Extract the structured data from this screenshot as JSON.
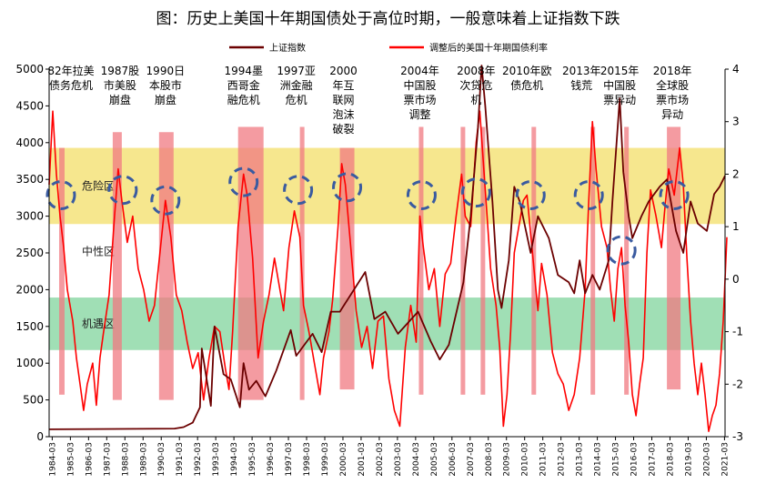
{
  "chart_data": {
    "type": "line",
    "title": "图：历史上美国十年期国债处于高位时期，一般意味着上证指数下跌",
    "legend_position": "top",
    "series": [
      {
        "name": "上证指数",
        "color": "#6b0000",
        "axis": "left"
      },
      {
        "name": "调整后的美国十年期国债利率",
        "color": "#ff0000",
        "axis": "right"
      }
    ],
    "left_axis": {
      "ylim": [
        0,
        5000
      ],
      "ticks": [
        "0",
        "500",
        "1000",
        "1500",
        "2000",
        "2500",
        "3000",
        "3500",
        "4000",
        "4500",
        "5000"
      ]
    },
    "right_axis": {
      "ylim": [
        -3,
        4
      ],
      "ticks": [
        "-3",
        "-2",
        "-1",
        "0",
        "1",
        "2",
        "3",
        "4"
      ]
    },
    "x_ticks": [
      "1984-03",
      "1985-03",
      "1986-03",
      "1987-03",
      "1988-03",
      "1989-03",
      "1990-03",
      "1991-03",
      "1992-03",
      "1993-03",
      "1994-03",
      "1995-03",
      "1996-03",
      "1997-03",
      "1998-03",
      "1999-03",
      "2000-03",
      "2001-03",
      "2002-03",
      "2003-03",
      "2004-03",
      "2005-03",
      "2006-03",
      "2007-03",
      "2008-03",
      "2009-03",
      "2010-03",
      "2011-03",
      "2012-03",
      "2013-03",
      "2014-03",
      "2015-03",
      "2016-03",
      "2017-03",
      "2018-03",
      "2019-03",
      "2020-03",
      "2021-03"
    ],
    "zones": [
      {
        "label": "危险区",
        "color": "#f5e37a",
        "y_range": [
          1.05,
          2.5
        ]
      },
      {
        "label": "中性区",
        "color": "#ffffff",
        "y_range": [
          -0.35,
          1.05
        ]
      },
      {
        "label": "机遇区",
        "color": "#8fd9a8",
        "y_range": [
          -1.35,
          -0.35
        ]
      }
    ],
    "annotations": [
      {
        "year": 1985.2,
        "lines": [
          "82年拉美",
          "债务危机"
        ]
      },
      {
        "year": 1987.9,
        "lines": [
          "1987股",
          "市美股",
          "崩盘"
        ]
      },
      {
        "year": 1990.4,
        "lines": [
          "1990日",
          "本股市",
          "崩盘"
        ]
      },
      {
        "year": 1994.7,
        "lines": [
          "1994墨",
          "西哥金",
          "融危机"
        ]
      },
      {
        "year": 1997.6,
        "lines": [
          "1997亚",
          "洲金融",
          "危机"
        ]
      },
      {
        "year": 2000.2,
        "lines": [
          "2000",
          "年互",
          "联网",
          "泡沫",
          "破裂"
        ]
      },
      {
        "year": 2004.4,
        "lines": [
          "2004年",
          "中国股",
          "票市场",
          "调整"
        ]
      },
      {
        "year": 2007.5,
        "lines": [
          "2008年",
          "次贷危",
          "机"
        ]
      },
      {
        "year": 2010.3,
        "lines": [
          "2010年欧",
          "债危机"
        ]
      },
      {
        "year": 2013.3,
        "lines": [
          "2013年",
          "钱荒"
        ]
      },
      {
        "year": 2015.4,
        "lines": [
          "2015年",
          "中国股",
          "票异动"
        ]
      },
      {
        "year": 2018.3,
        "lines": [
          "2018年",
          "全球股",
          "票市场",
          "异动"
        ]
      }
    ],
    "highlight_bars": [
      {
        "start": 1984.55,
        "end": 1984.85,
        "top": 2.5,
        "bottom": -2.2
      },
      {
        "start": 1987.5,
        "end": 1988.0,
        "top": 2.8,
        "bottom": -2.3
      },
      {
        "start": 1990.05,
        "end": 1990.85,
        "top": 2.8,
        "bottom": -2.3
      },
      {
        "start": 1994.4,
        "end": 1995.8,
        "top": 2.9,
        "bottom": -2.3
      },
      {
        "start": 1997.8,
        "end": 1998.05,
        "top": 2.9,
        "bottom": -2.3
      },
      {
        "start": 2000.0,
        "end": 2000.8,
        "top": 2.5,
        "bottom": -2.1
      },
      {
        "start": 2004.35,
        "end": 2004.6,
        "top": 2.9,
        "bottom": -2.2
      },
      {
        "start": 2006.65,
        "end": 2006.9,
        "top": 2.9,
        "bottom": -2.2
      },
      {
        "start": 2007.75,
        "end": 2008.0,
        "top": 2.9,
        "bottom": -2.2
      },
      {
        "start": 2010.55,
        "end": 2010.8,
        "top": 2.9,
        "bottom": -2.2
      },
      {
        "start": 2013.8,
        "end": 2014.05,
        "top": 2.9,
        "bottom": -2.2
      },
      {
        "start": 2015.65,
        "end": 2015.9,
        "top": 2.9,
        "bottom": -2.2
      },
      {
        "start": 2018.0,
        "end": 2018.75,
        "top": 2.9,
        "bottom": -2.1
      }
    ],
    "highlight_circles": [
      {
        "year": 1984.65,
        "value": 1.6
      },
      {
        "year": 1988.05,
        "value": 1.7
      },
      {
        "year": 1990.4,
        "value": 1.5
      },
      {
        "year": 1994.7,
        "value": 1.85
      },
      {
        "year": 1997.7,
        "value": 1.7
      },
      {
        "year": 2000.4,
        "value": 1.75
      },
      {
        "year": 2004.5,
        "value": 1.6
      },
      {
        "year": 2007.5,
        "value": 1.65
      },
      {
        "year": 2010.5,
        "value": 1.6
      },
      {
        "year": 2013.7,
        "value": 1.6
      },
      {
        "year": 2015.5,
        "value": 0.55
      },
      {
        "year": 2018.4,
        "value": 1.6
      }
    ],
    "shanghai_index": [
      [
        1984.0,
        100
      ],
      [
        1990.9,
        110
      ],
      [
        1991.4,
        130
      ],
      [
        1991.9,
        190
      ],
      [
        1992.3,
        400
      ],
      [
        1992.4,
        1200
      ],
      [
        1992.9,
        420
      ],
      [
        1993.1,
        1500
      ],
      [
        1993.6,
        850
      ],
      [
        1994.0,
        780
      ],
      [
        1994.5,
        400
      ],
      [
        1994.7,
        1000
      ],
      [
        1995.0,
        640
      ],
      [
        1995.4,
        760
      ],
      [
        1995.9,
        550
      ],
      [
        1996.5,
        900
      ],
      [
        1997.3,
        1450
      ],
      [
        1997.6,
        1100
      ],
      [
        1998.5,
        1400
      ],
      [
        1999.0,
        1150
      ],
      [
        1999.5,
        1700
      ],
      [
        2000.0,
        1700
      ],
      [
        2001.4,
        2240
      ],
      [
        2001.9,
        1600
      ],
      [
        2002.5,
        1700
      ],
      [
        2003.2,
        1400
      ],
      [
        2004.3,
        1700
      ],
      [
        2005.0,
        1300
      ],
      [
        2005.5,
        1050
      ],
      [
        2006.0,
        1250
      ],
      [
        2006.8,
        2100
      ],
      [
        2007.2,
        3000
      ],
      [
        2007.6,
        4200
      ],
      [
        2007.8,
        5900
      ],
      [
        2008.0,
        4500
      ],
      [
        2008.4,
        3200
      ],
      [
        2008.7,
        2000
      ],
      [
        2008.9,
        1750
      ],
      [
        2009.3,
        2400
      ],
      [
        2009.6,
        3400
      ],
      [
        2009.9,
        3200
      ],
      [
        2010.5,
        2500
      ],
      [
        2010.9,
        3000
      ],
      [
        2011.5,
        2700
      ],
      [
        2012.0,
        2200
      ],
      [
        2012.6,
        2100
      ],
      [
        2012.9,
        1950
      ],
      [
        2013.2,
        2400
      ],
      [
        2013.5,
        1950
      ],
      [
        2013.9,
        2200
      ],
      [
        2014.3,
        2000
      ],
      [
        2014.8,
        2400
      ],
      [
        2015.0,
        3200
      ],
      [
        2015.4,
        4600
      ],
      [
        2015.6,
        3600
      ],
      [
        2015.9,
        3000
      ],
      [
        2016.1,
        2700
      ],
      [
        2016.6,
        3000
      ],
      [
        2017.0,
        3200
      ],
      [
        2017.6,
        3400
      ],
      [
        2018.0,
        3500
      ],
      [
        2018.5,
        2800
      ],
      [
        2018.9,
        2500
      ],
      [
        2019.3,
        3200
      ],
      [
        2019.7,
        2900
      ],
      [
        2020.2,
        2800
      ],
      [
        2020.6,
        3300
      ],
      [
        2020.9,
        3400
      ],
      [
        2021.2,
        3550
      ]
    ],
    "us10y_adjusted": [
      [
        1984.0,
        1.8
      ],
      [
        1984.2,
        3.2
      ],
      [
        1984.4,
        2.0
      ],
      [
        1984.6,
        1.2
      ],
      [
        1984.8,
        0.6
      ],
      [
        1985.0,
        -0.2
      ],
      [
        1985.3,
        -0.8
      ],
      [
        1985.5,
        -1.5
      ],
      [
        1985.7,
        -2.0
      ],
      [
        1985.9,
        -2.5
      ],
      [
        1986.1,
        -2.0
      ],
      [
        1986.4,
        -1.6
      ],
      [
        1986.6,
        -2.4
      ],
      [
        1986.8,
        -1.5
      ],
      [
        1987.0,
        -1.0
      ],
      [
        1987.3,
        -0.3
      ],
      [
        1987.6,
        1.2
      ],
      [
        1987.8,
        2.1
      ],
      [
        1988.0,
        1.5
      ],
      [
        1988.3,
        0.7
      ],
      [
        1988.6,
        1.2
      ],
      [
        1988.9,
        0.2
      ],
      [
        1989.2,
        -0.2
      ],
      [
        1989.5,
        -0.8
      ],
      [
        1989.8,
        -0.5
      ],
      [
        1990.1,
        0.5
      ],
      [
        1990.4,
        1.5
      ],
      [
        1990.7,
        0.8
      ],
      [
        1991.0,
        -0.3
      ],
      [
        1991.3,
        -0.6
      ],
      [
        1991.6,
        -1.2
      ],
      [
        1991.9,
        -1.7
      ],
      [
        1992.2,
        -1.4
      ],
      [
        1992.5,
        -2.3
      ],
      [
        1992.8,
        -1.5
      ],
      [
        1993.1,
        -0.9
      ],
      [
        1993.4,
        -1.0
      ],
      [
        1993.7,
        -1.7
      ],
      [
        1993.9,
        -2.1
      ],
      [
        1994.1,
        -1.0
      ],
      [
        1994.4,
        1.0
      ],
      [
        1994.7,
        2.0
      ],
      [
        1994.9,
        1.6
      ],
      [
        1995.2,
        0.4
      ],
      [
        1995.5,
        -1.5
      ],
      [
        1995.8,
        -0.8
      ],
      [
        1996.1,
        -0.3
      ],
      [
        1996.4,
        0.4
      ],
      [
        1996.7,
        -0.2
      ],
      [
        1996.9,
        -0.6
      ],
      [
        1997.2,
        0.6
      ],
      [
        1997.5,
        1.3
      ],
      [
        1997.8,
        0.8
      ],
      [
        1998.0,
        -0.5
      ],
      [
        1998.3,
        -1.0
      ],
      [
        1998.6,
        -1.6
      ],
      [
        1998.9,
        -2.2
      ],
      [
        1999.1,
        -1.5
      ],
      [
        1999.4,
        -1.0
      ],
      [
        1999.6,
        -0.4
      ],
      [
        1999.9,
        1.0
      ],
      [
        2000.1,
        2.2
      ],
      [
        2000.3,
        1.8
      ],
      [
        2000.6,
        0.6
      ],
      [
        2000.9,
        -0.6
      ],
      [
        2001.2,
        -1.3
      ],
      [
        2001.5,
        -0.9
      ],
      [
        2001.8,
        -1.7
      ],
      [
        2002.1,
        -0.8
      ],
      [
        2002.4,
        -0.7
      ],
      [
        2002.7,
        -1.9
      ],
      [
        2003.0,
        -2.5
      ],
      [
        2003.3,
        -2.8
      ],
      [
        2003.6,
        -1.3
      ],
      [
        2003.9,
        -0.5
      ],
      [
        2004.2,
        -1.2
      ],
      [
        2004.4,
        1.2
      ],
      [
        2004.6,
        0.6
      ],
      [
        2004.9,
        -0.2
      ],
      [
        2005.2,
        0.2
      ],
      [
        2005.5,
        -0.9
      ],
      [
        2005.8,
        0.1
      ],
      [
        2006.1,
        0.3
      ],
      [
        2006.4,
        1.2
      ],
      [
        2006.7,
        2.0
      ],
      [
        2006.9,
        1.2
      ],
      [
        2007.2,
        1.0
      ],
      [
        2007.5,
        2.6
      ],
      [
        2007.7,
        3.2
      ],
      [
        2007.9,
        2.2
      ],
      [
        2008.1,
        1.2
      ],
      [
        2008.3,
        0.2
      ],
      [
        2008.6,
        -0.5
      ],
      [
        2008.8,
        -1.3
      ],
      [
        2009.0,
        -2.8
      ],
      [
        2009.2,
        -2.2
      ],
      [
        2009.4,
        -1.0
      ],
      [
        2009.6,
        0.5
      ],
      [
        2009.9,
        1.1
      ],
      [
        2010.1,
        1.5
      ],
      [
        2010.3,
        1.6
      ],
      [
        2010.6,
        0.5
      ],
      [
        2010.9,
        -0.6
      ],
      [
        2011.1,
        0.3
      ],
      [
        2011.4,
        -0.3
      ],
      [
        2011.7,
        -1.4
      ],
      [
        2012.0,
        -1.8
      ],
      [
        2012.3,
        -2.0
      ],
      [
        2012.6,
        -2.5
      ],
      [
        2012.9,
        -2.2
      ],
      [
        2013.2,
        -1.5
      ],
      [
        2013.5,
        -0.2
      ],
      [
        2013.7,
        1.5
      ],
      [
        2013.9,
        3.0
      ],
      [
        2014.1,
        2.1
      ],
      [
        2014.4,
        1.0
      ],
      [
        2014.7,
        0.6
      ],
      [
        2014.9,
        -0.2
      ],
      [
        2015.1,
        -0.8
      ],
      [
        2015.3,
        0.2
      ],
      [
        2015.5,
        0.6
      ],
      [
        2015.7,
        -0.5
      ],
      [
        2015.9,
        -1.2
      ],
      [
        2016.1,
        -2.2
      ],
      [
        2016.3,
        -2.6
      ],
      [
        2016.5,
        -2.0
      ],
      [
        2016.7,
        -1.5
      ],
      [
        2016.9,
        0.5
      ],
      [
        2017.1,
        1.7
      ],
      [
        2017.4,
        1.2
      ],
      [
        2017.7,
        0.6
      ],
      [
        2017.9,
        1.4
      ],
      [
        2018.1,
        2.1
      ],
      [
        2018.4,
        1.6
      ],
      [
        2018.7,
        2.5
      ],
      [
        2018.9,
        1.8
      ],
      [
        2019.1,
        0.4
      ],
      [
        2019.3,
        -0.8
      ],
      [
        2019.5,
        -1.6
      ],
      [
        2019.7,
        -2.2
      ],
      [
        2019.9,
        -1.6
      ],
      [
        2020.1,
        -2.2
      ],
      [
        2020.3,
        -2.9
      ],
      [
        2020.5,
        -2.6
      ],
      [
        2020.7,
        -2.4
      ],
      [
        2020.9,
        -1.8
      ],
      [
        2021.1,
        -0.8
      ],
      [
        2021.3,
        0.8
      ]
    ]
  }
}
